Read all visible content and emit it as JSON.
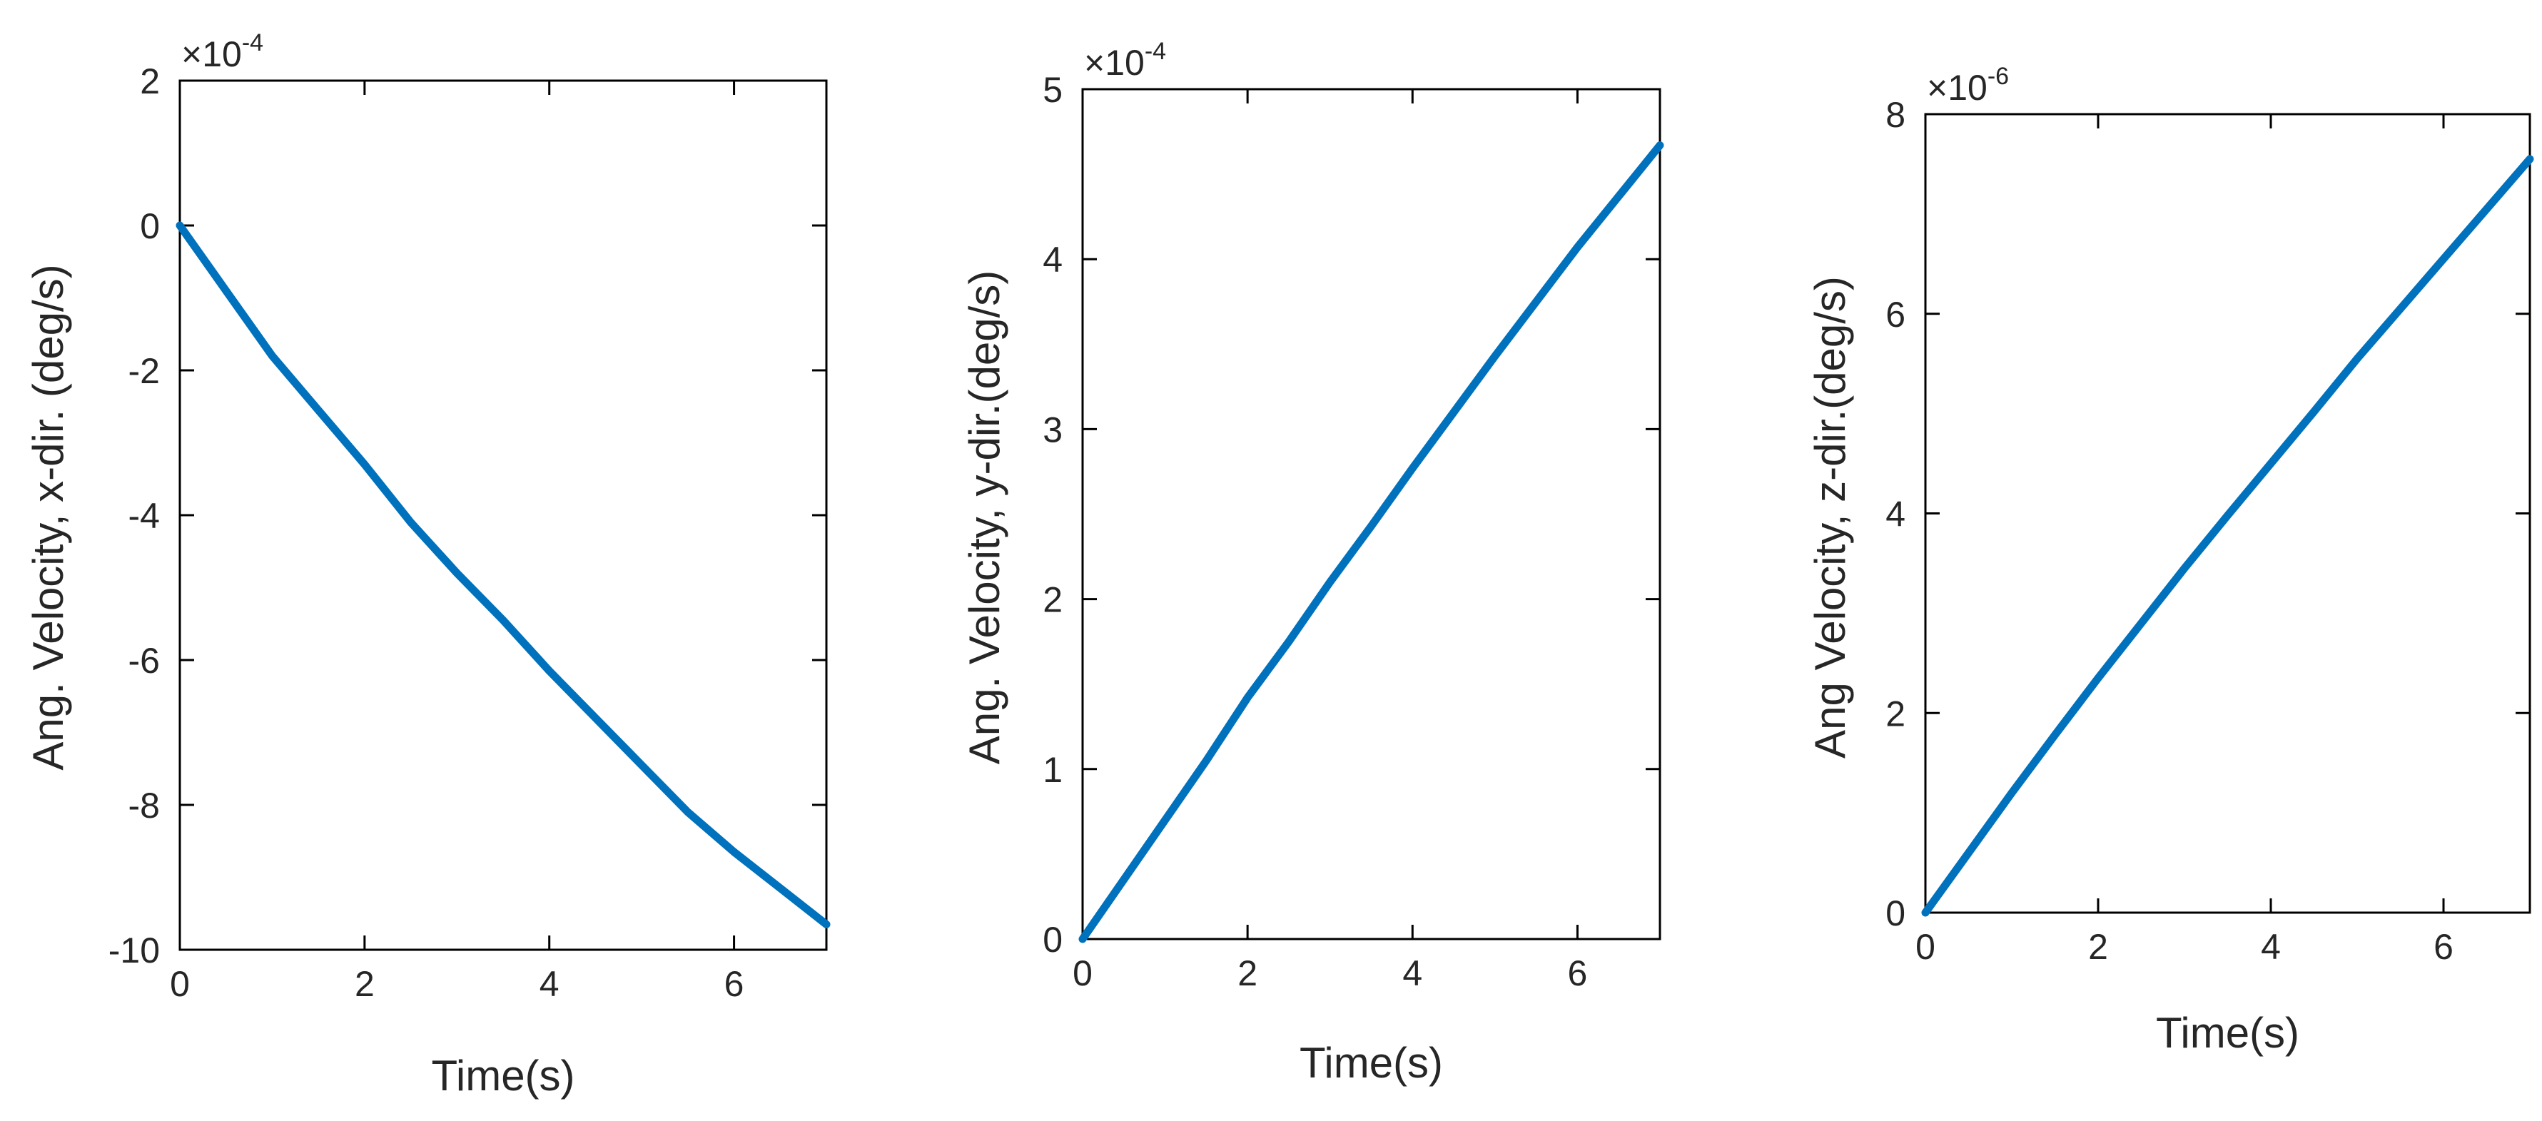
{
  "colors": {
    "series": "#0072BD",
    "axis": "#000000",
    "text": "#262626"
  },
  "chart_data": [
    {
      "type": "line",
      "title": "",
      "xlabel": "Time(s)",
      "ylabel": "Ang. Velocity, x-dir. (deg/s)",
      "xlim": [
        0,
        7
      ],
      "ylim": [
        -10,
        2
      ],
      "xticks": [
        "0",
        "2",
        "4",
        "6"
      ],
      "yticks": [
        "-10",
        "-8",
        "-6",
        "-4",
        "-2",
        "0",
        "2"
      ],
      "exponent": {
        "base": "×10",
        "power": "-4"
      },
      "series": [
        {
          "name": "x-dir",
          "x": [
            0,
            0.5,
            1,
            1.5,
            2,
            2.5,
            3,
            3.5,
            4,
            4.5,
            5,
            5.5,
            6,
            6.5,
            7
          ],
          "values": [
            0,
            -0.9,
            -1.8,
            -2.55,
            -3.3,
            -4.1,
            -4.8,
            -5.45,
            -6.15,
            -6.8,
            -7.45,
            -8.1,
            -8.65,
            -9.15,
            -9.65
          ]
        }
      ]
    },
    {
      "type": "line",
      "title": "",
      "xlabel": "Time(s)",
      "ylabel": "Ang. Velocity, y-dir.(deg/s)",
      "xlim": [
        0,
        7
      ],
      "ylim": [
        0,
        5
      ],
      "xticks": [
        "0",
        "2",
        "4",
        "6"
      ],
      "yticks": [
        "0",
        "1",
        "2",
        "3",
        "4",
        "5"
      ],
      "exponent": {
        "base": "×10",
        "power": "-4"
      },
      "series": [
        {
          "name": "y-dir",
          "x": [
            0,
            0.5,
            1,
            1.5,
            2,
            2.5,
            3,
            3.5,
            4,
            4.5,
            5,
            5.5,
            6,
            6.5,
            7
          ],
          "values": [
            0,
            0.35,
            0.7,
            1.05,
            1.42,
            1.75,
            2.1,
            2.43,
            2.77,
            3.1,
            3.43,
            3.75,
            4.07,
            4.37,
            4.67
          ]
        }
      ]
    },
    {
      "type": "line",
      "title": "",
      "xlabel": "Time(s)",
      "ylabel": "Ang Velocity, z-dir.(deg/s)",
      "xlim": [
        0,
        7
      ],
      "ylim": [
        0,
        8
      ],
      "xticks": [
        "0",
        "2",
        "4",
        "6"
      ],
      "yticks": [
        "0",
        "2",
        "4",
        "6",
        "8"
      ],
      "exponent": {
        "base": "×10",
        "power": "-6"
      },
      "series": [
        {
          "name": "z-dir",
          "x": [
            0,
            0.5,
            1,
            1.5,
            2,
            2.5,
            3,
            3.5,
            4,
            4.5,
            5,
            5.5,
            6,
            6.5,
            7
          ],
          "values": [
            0,
            0.6,
            1.2,
            1.78,
            2.35,
            2.9,
            3.45,
            3.98,
            4.5,
            5.02,
            5.55,
            6.05,
            6.55,
            7.05,
            7.55
          ]
        }
      ]
    }
  ]
}
